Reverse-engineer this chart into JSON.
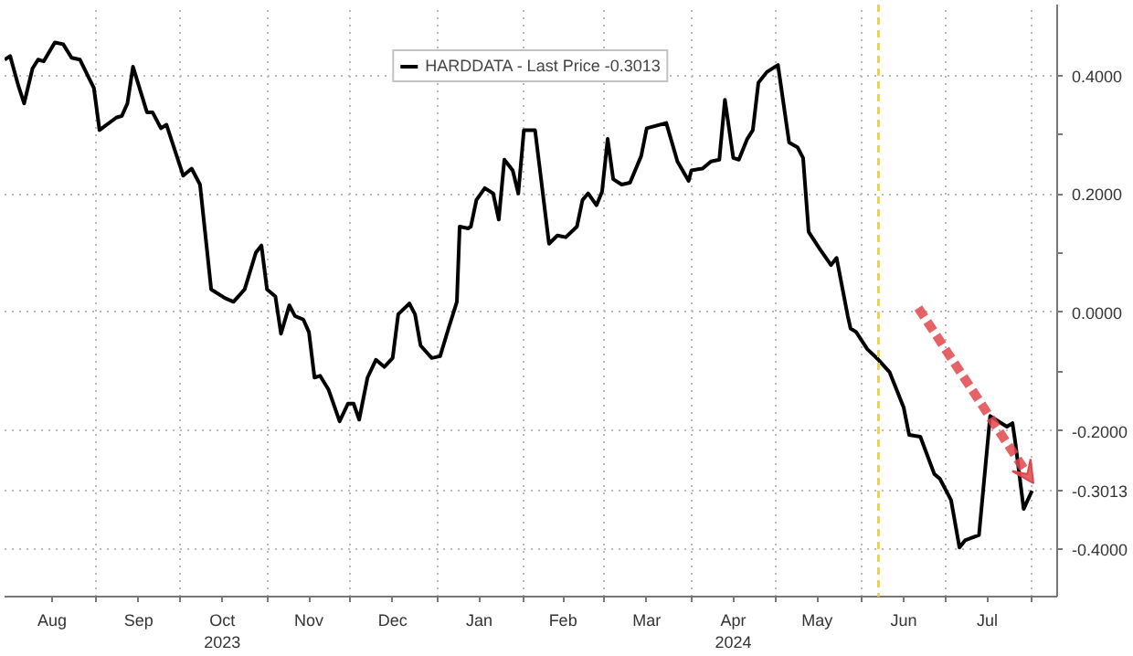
{
  "chart_data": {
    "type": "line",
    "x": [
      "2023-07-30",
      "2023-08-01",
      "2023-08-04",
      "2023-08-06",
      "2023-08-09",
      "2023-08-11",
      "2023-08-13",
      "2023-08-17",
      "2023-08-20",
      "2023-08-23",
      "2023-08-26",
      "2023-08-31",
      "2023-09-02",
      "2023-09-08",
      "2023-09-10",
      "2023-09-12",
      "2023-09-14",
      "2023-09-19",
      "2023-09-21",
      "2023-09-24",
      "2023-09-26",
      "2023-10-02",
      "2023-10-05",
      "2023-10-08",
      "2023-10-12",
      "2023-10-17",
      "2023-10-20",
      "2023-10-24",
      "2023-10-28",
      "2023-10-30",
      "2023-11-01",
      "2023-11-04",
      "2023-11-06",
      "2023-11-09",
      "2023-11-11",
      "2023-11-14",
      "2023-11-16",
      "2023-11-18",
      "2023-11-20",
      "2023-11-23",
      "2023-11-27",
      "2023-11-30",
      "2023-12-02",
      "2023-12-04",
      "2023-12-07",
      "2023-12-10",
      "2023-12-13",
      "2023-12-16",
      "2023-12-18",
      "2023-12-22",
      "2023-12-24",
      "2023-12-26",
      "2023-12-30",
      "2024-01-02",
      "2024-01-05",
      "2024-01-08",
      "2024-01-09",
      "2024-01-12",
      "2024-01-13",
      "2024-01-15",
      "2024-01-18",
      "2024-01-21",
      "2024-01-23",
      "2024-01-25",
      "2024-01-28",
      "2024-01-30",
      "2024-02-01",
      "2024-02-05",
      "2024-02-10",
      "2024-02-13",
      "2024-02-16",
      "2024-02-20",
      "2024-02-22",
      "2024-02-24",
      "2024-02-27",
      "2024-02-29",
      "2024-03-02",
      "2024-03-04",
      "2024-03-07",
      "2024-03-10",
      "2024-03-14",
      "2024-03-16",
      "2024-03-23",
      "2024-03-27",
      "2024-03-31",
      "2024-04-01",
      "2024-04-05",
      "2024-04-08",
      "2024-04-11",
      "2024-04-13",
      "2024-04-16",
      "2024-04-18",
      "2024-04-21",
      "2024-04-23",
      "2024-04-25",
      "2024-04-28",
      "2024-05-02",
      "2024-05-06",
      "2024-05-09",
      "2024-05-11",
      "2024-05-13",
      "2024-05-17",
      "2024-05-21",
      "2024-05-23",
      "2024-05-27",
      "2024-05-28",
      "2024-05-30",
      "2024-06-03",
      "2024-06-07",
      "2024-06-11",
      "2024-06-16",
      "2024-06-18",
      "2024-06-22",
      "2024-06-27",
      "2024-06-29",
      "2024-07-03",
      "2024-07-06",
      "2024-07-08",
      "2024-07-13",
      "2024-07-17",
      "2024-07-20",
      "2024-07-23",
      "2024-07-25",
      "2024-07-26",
      "2024-07-29",
      "2024-08-01"
    ],
    "series": [
      {
        "name": "HARDDATA - Last Price -0.3013",
        "color": "#000000",
        "values": [
          0.427,
          0.433,
          0.382,
          0.353,
          0.412,
          0.427,
          0.424,
          0.456,
          0.453,
          0.43,
          0.427,
          0.379,
          0.308,
          0.329,
          0.332,
          0.353,
          0.415,
          0.338,
          0.338,
          0.311,
          0.317,
          0.231,
          0.243,
          0.216,
          0.039,
          0.024,
          0.018,
          0.039,
          0.101,
          0.113,
          0.039,
          0.027,
          -0.036,
          0.012,
          -0.006,
          -0.012,
          -0.033,
          -0.11,
          -0.107,
          -0.13,
          -0.184,
          -0.154,
          -0.154,
          -0.181,
          -0.11,
          -0.08,
          -0.092,
          -0.077,
          -0.003,
          0.015,
          -0.003,
          -0.056,
          -0.077,
          -0.074,
          -0.027,
          0.018,
          0.145,
          0.142,
          0.145,
          0.19,
          0.21,
          0.201,
          0.157,
          0.258,
          0.24,
          0.201,
          0.308,
          0.308,
          0.116,
          0.13,
          0.127,
          0.145,
          0.19,
          0.201,
          0.181,
          0.204,
          0.293,
          0.225,
          0.216,
          0.219,
          0.264,
          0.311,
          0.32,
          0.255,
          0.222,
          0.24,
          0.243,
          0.255,
          0.258,
          0.359,
          0.261,
          0.258,
          0.293,
          0.308,
          0.388,
          0.406,
          0.418,
          0.287,
          0.279,
          0.261,
          0.136,
          0.107,
          0.08,
          0.092,
          -0.006,
          -0.027,
          -0.033,
          -0.062,
          -0.08,
          -0.101,
          -0.16,
          -0.207,
          -0.21,
          -0.273,
          -0.281,
          -0.317,
          -0.397,
          -0.385,
          -0.376,
          -0.175,
          -0.184,
          -0.193,
          -0.187,
          -0.219,
          -0.332,
          -0.3013
        ]
      }
    ],
    "xlim": [
      "2023-07-30",
      "2024-08-10"
    ],
    "xticks": [
      {
        "value": "2023-08-16",
        "label": "Aug"
      },
      {
        "value": "2023-09-01",
        "label": null
      },
      {
        "value": "2023-09-16",
        "label": "Sep"
      },
      {
        "value": "2023-10-01",
        "label": null
      },
      {
        "value": "2023-10-16",
        "label": "Oct\n2023"
      },
      {
        "value": "2023-11-01",
        "label": null
      },
      {
        "value": "2023-11-16",
        "label": "Nov"
      },
      {
        "value": "2023-12-01",
        "label": null
      },
      {
        "value": "2023-12-16",
        "label": "Dec"
      },
      {
        "value": "2024-01-01",
        "label": null
      },
      {
        "value": "2024-01-16",
        "label": "Jan"
      },
      {
        "value": "2024-02-01",
        "label": null
      },
      {
        "value": "2024-02-15",
        "label": "Feb"
      },
      {
        "value": "2024-03-01",
        "label": null
      },
      {
        "value": "2024-03-16",
        "label": "Mar"
      },
      {
        "value": "2024-04-01",
        "label": null
      },
      {
        "value": "2024-04-16",
        "label": "Apr\n2024"
      },
      {
        "value": "2024-05-01",
        "label": null
      },
      {
        "value": "2024-05-16",
        "label": "May"
      },
      {
        "value": "2024-06-01",
        "label": null
      },
      {
        "value": "2024-06-16",
        "label": "Jun"
      },
      {
        "value": "2024-07-01",
        "label": null
      },
      {
        "value": "2024-07-16",
        "label": "Jul"
      },
      {
        "value": "2024-08-01",
        "label": null
      }
    ],
    "ylim": [
      -0.48,
      0.52
    ],
    "yticks": [
      {
        "value": -0.4,
        "label": "-0.4000"
      },
      {
        "value": -0.3013,
        "label": "-0.3013"
      },
      {
        "value": -0.2,
        "label": "-0.2000"
      },
      {
        "value": -0.1,
        "label": null
      },
      {
        "value": 0,
        "label": "0.0000"
      },
      {
        "value": 0.1,
        "label": null
      },
      {
        "value": 0.2,
        "label": "0.2000"
      },
      {
        "value": 0.3,
        "label": null
      },
      {
        "value": 0.4,
        "label": "0.4000"
      }
    ],
    "ref_lines": [
      {
        "axis": "x",
        "value": "2024-06-07",
        "color": "#e8d44d",
        "line_style": "dashed"
      }
    ],
    "grid": true,
    "legend": "top",
    "marker": "none",
    "line_style": "solid"
  }
}
